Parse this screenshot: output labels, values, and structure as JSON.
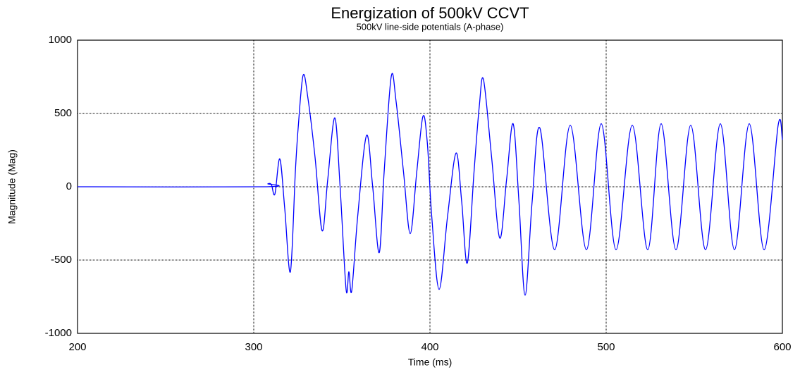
{
  "chart_data": {
    "type": "line",
    "title": "Energization of 500kV CCVT",
    "subtitle": "500kV line-side potentials (A-phase)",
    "x_label": "Time (ms)",
    "y_label": "Magnitude (Mag)",
    "x": [
      200,
      306,
      308,
      310,
      312,
      314.8,
      317.6,
      320.8,
      323.6,
      325.2,
      328,
      330.8,
      334.8,
      338.8,
      342,
      346,
      349,
      352.4,
      354,
      355.6,
      359,
      364,
      367.5,
      371.2,
      374,
      378,
      380.8,
      385,
      388.8,
      392.5,
      396,
      398.5,
      401,
      405.2,
      410,
      414.8,
      418,
      421.2,
      425,
      428,
      430.4,
      435,
      439.6,
      443.5,
      447.2,
      450.5,
      454,
      458,
      462.4,
      470.8,
      479.6,
      488.8,
      497.2,
      505.6,
      514.8,
      523.6,
      531.2,
      539.6,
      548,
      556.4,
      564.8,
      572.8,
      581.2,
      589.6,
      597.6,
      600
    ],
    "series": [
      {
        "name": "A-phase",
        "color": "#0000ff",
        "values": [
          0,
          0,
          20,
          15,
          -50,
          190,
          -150,
          -580,
          100,
          400,
          760,
          600,
          200,
          -300,
          50,
          470,
          0,
          -700,
          -580,
          -710,
          -200,
          350,
          0,
          -450,
          100,
          750,
          580,
          100,
          -320,
          100,
          480,
          300,
          -200,
          -700,
          -200,
          230,
          -100,
          -520,
          100,
          550,
          730,
          200,
          -350,
          50,
          430,
          -100,
          -740,
          -100,
          400,
          -430,
          420,
          -430,
          430,
          -430,
          420,
          -430,
          430,
          -430,
          420,
          -430,
          430,
          -430,
          430,
          -430,
          420,
          320
        ]
      }
    ],
    "xlim": [
      200,
      600
    ],
    "xticks": [
      200,
      300,
      400,
      500,
      600
    ],
    "ylim": [
      -1000,
      1000
    ],
    "yticks": [
      -1000,
      -500,
      0,
      500,
      1000
    ],
    "grid": true
  }
}
